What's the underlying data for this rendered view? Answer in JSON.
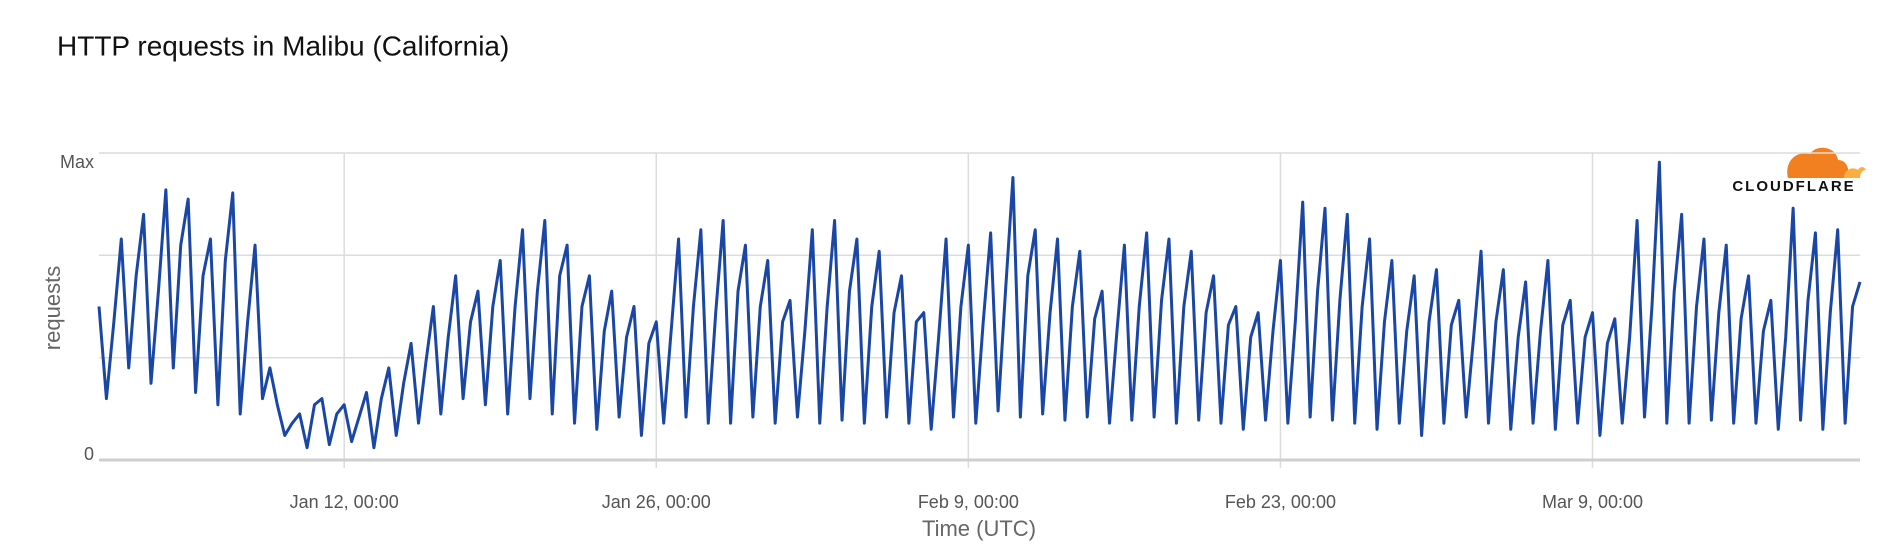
{
  "chart_data": {
    "type": "line",
    "title": "HTTP requests in Malibu (California)",
    "x_label": "Time (UTC)",
    "y_label": "requests",
    "logo": "CLOUDFLARE",
    "color": "#1a47a6",
    "grid": true,
    "ylim": [
      0,
      1
    ],
    "yticks": [
      0,
      {
        "value": 0.333,
        "label": null
      },
      {
        "value": 0.667,
        "label": null
      },
      {
        "value": 1,
        "label": "Max"
      }
    ],
    "xticks": [
      "Jan 12, 00:00",
      "Jan 26, 00:00",
      "Feb 9, 00:00",
      "Feb 23, 00:00",
      "Mar 9, 00:00"
    ],
    "x": [
      "Jan 1, 00:00",
      "Jan 1, 08:00",
      "Jan 1, 16:00",
      "Jan 2, 00:00",
      "Jan 2, 08:00",
      "Jan 2, 16:00",
      "Jan 3, 00:00",
      "Jan 3, 08:00",
      "Jan 3, 16:00",
      "Jan 4, 00:00",
      "Jan 4, 08:00",
      "Jan 4, 16:00",
      "Jan 5, 00:00",
      "Jan 5, 08:00",
      "Jan 5, 16:00",
      "Jan 6, 00:00",
      "Jan 6, 08:00",
      "Jan 6, 16:00",
      "Jan 7, 00:00",
      "Jan 7, 08:00",
      "Jan 7, 16:00",
      "Jan 8, 00:00",
      "Jan 8, 08:00",
      "Jan 8, 16:00",
      "Jan 9, 00:00",
      "Jan 9, 08:00",
      "Jan 9, 16:00",
      "Jan 10, 00:00",
      "Jan 10, 08:00",
      "Jan 10, 16:00",
      "Jan 11, 00:00",
      "Jan 11, 08:00",
      "Jan 11, 16:00",
      "Jan 12, 00:00",
      "Jan 12, 08:00",
      "Jan 12, 16:00",
      "Jan 13, 00:00",
      "Jan 13, 08:00",
      "Jan 13, 16:00",
      "Jan 14, 00:00",
      "Jan 14, 08:00",
      "Jan 14, 16:00",
      "Jan 15, 00:00",
      "Jan 15, 08:00",
      "Jan 15, 16:00",
      "Jan 16, 00:00",
      "Jan 16, 08:00",
      "Jan 16, 16:00",
      "Jan 17, 00:00",
      "Jan 17, 08:00",
      "Jan 17, 16:00",
      "Jan 18, 00:00",
      "Jan 18, 08:00",
      "Jan 18, 16:00",
      "Jan 19, 00:00",
      "Jan 19, 08:00",
      "Jan 19, 16:00",
      "Jan 20, 00:00",
      "Jan 20, 08:00",
      "Jan 20, 16:00",
      "Jan 21, 00:00",
      "Jan 21, 08:00",
      "Jan 21, 16:00",
      "Jan 22, 00:00",
      "Jan 22, 08:00",
      "Jan 22, 16:00",
      "Jan 23, 00:00",
      "Jan 23, 08:00",
      "Jan 23, 16:00",
      "Jan 24, 00:00",
      "Jan 24, 08:00",
      "Jan 24, 16:00",
      "Jan 25, 00:00",
      "Jan 25, 08:00",
      "Jan 25, 16:00",
      "Jan 26, 00:00",
      "Jan 26, 08:00",
      "Jan 26, 16:00",
      "Jan 27, 00:00",
      "Jan 27, 08:00",
      "Jan 27, 16:00",
      "Jan 28, 00:00",
      "Jan 28, 08:00",
      "Jan 28, 16:00",
      "Jan 29, 00:00",
      "Jan 29, 08:00",
      "Jan 29, 16:00",
      "Jan 30, 00:00",
      "Jan 30, 08:00",
      "Jan 30, 16:00",
      "Jan 31, 00:00",
      "Jan 31, 08:00",
      "Jan 31, 16:00",
      "Feb 1, 00:00",
      "Feb 1, 08:00",
      "Feb 1, 16:00",
      "Feb 2, 00:00",
      "Feb 2, 08:00",
      "Feb 2, 16:00",
      "Feb 3, 00:00",
      "Feb 3, 08:00",
      "Feb 3, 16:00",
      "Feb 4, 00:00",
      "Feb 4, 08:00",
      "Feb 4, 16:00",
      "Feb 5, 00:00",
      "Feb 5, 08:00",
      "Feb 5, 16:00",
      "Feb 6, 00:00",
      "Feb 6, 08:00",
      "Feb 6, 16:00",
      "Feb 7, 00:00",
      "Feb 7, 08:00",
      "Feb 7, 16:00",
      "Feb 8, 00:00",
      "Feb 8, 08:00",
      "Feb 8, 16:00",
      "Feb 9, 00:00",
      "Feb 9, 08:00",
      "Feb 9, 16:00",
      "Feb 10, 00:00",
      "Feb 10, 08:00",
      "Feb 10, 16:00",
      "Feb 11, 00:00",
      "Feb 11, 08:00",
      "Feb 11, 16:00",
      "Feb 12, 00:00",
      "Feb 12, 08:00",
      "Feb 12, 16:00",
      "Feb 13, 00:00",
      "Feb 13, 08:00",
      "Feb 13, 16:00",
      "Feb 14, 00:00",
      "Feb 14, 08:00",
      "Feb 14, 16:00",
      "Feb 15, 00:00",
      "Feb 15, 08:00",
      "Feb 15, 16:00",
      "Feb 16, 00:00",
      "Feb 16, 08:00",
      "Feb 16, 16:00",
      "Feb 17, 00:00",
      "Feb 17, 08:00",
      "Feb 17, 16:00",
      "Feb 18, 00:00",
      "Feb 18, 08:00",
      "Feb 18, 16:00",
      "Feb 19, 00:00",
      "Feb 19, 08:00",
      "Feb 19, 16:00",
      "Feb 20, 00:00",
      "Feb 20, 08:00",
      "Feb 20, 16:00",
      "Feb 21, 00:00",
      "Feb 21, 08:00",
      "Feb 21, 16:00",
      "Feb 22, 00:00",
      "Feb 22, 08:00",
      "Feb 22, 16:00",
      "Feb 23, 00:00",
      "Feb 23, 08:00",
      "Feb 23, 16:00",
      "Feb 24, 00:00",
      "Feb 24, 08:00",
      "Feb 24, 16:00",
      "Feb 25, 00:00",
      "Feb 25, 08:00",
      "Feb 25, 16:00",
      "Feb 26, 00:00",
      "Feb 26, 08:00",
      "Feb 26, 16:00",
      "Feb 27, 00:00",
      "Feb 27, 08:00",
      "Feb 27, 16:00",
      "Feb 28, 00:00",
      "Feb 28, 08:00",
      "Feb 28, 16:00",
      "Mar 1, 00:00",
      "Mar 1, 08:00",
      "Mar 1, 16:00",
      "Mar 2, 00:00",
      "Mar 2, 08:00",
      "Mar 2, 16:00",
      "Mar 3, 00:00",
      "Mar 3, 08:00",
      "Mar 3, 16:00",
      "Mar 4, 00:00",
      "Mar 4, 08:00",
      "Mar 4, 16:00",
      "Mar 5, 00:00",
      "Mar 5, 08:00",
      "Mar 5, 16:00",
      "Mar 6, 00:00",
      "Mar 6, 08:00",
      "Mar 6, 16:00",
      "Mar 7, 00:00",
      "Mar 7, 08:00",
      "Mar 7, 16:00",
      "Mar 8, 00:00",
      "Mar 8, 08:00",
      "Mar 8, 16:00",
      "Mar 9, 00:00",
      "Mar 9, 08:00",
      "Mar 9, 16:00",
      "Mar 10, 00:00",
      "Mar 10, 08:00",
      "Mar 10, 16:00",
      "Mar 11, 00:00",
      "Mar 11, 08:00",
      "Mar 11, 16:00",
      "Mar 12, 00:00",
      "Mar 12, 08:00",
      "Mar 12, 16:00",
      "Mar 13, 00:00",
      "Mar 13, 08:00",
      "Mar 13, 16:00",
      "Mar 14, 00:00",
      "Mar 14, 08:00",
      "Mar 14, 16:00",
      "Mar 15, 00:00",
      "Mar 15, 08:00",
      "Mar 15, 16:00",
      "Mar 16, 00:00",
      "Mar 16, 08:00",
      "Mar 16, 16:00",
      "Mar 17, 00:00",
      "Mar 17, 08:00",
      "Mar 17, 16:00",
      "Mar 18, 00:00",
      "Mar 18, 08:00",
      "Mar 18, 16:00",
      "Mar 19, 00:00",
      "Mar 19, 08:00",
      "Mar 19, 16:00",
      "Mar 20, 00:00",
      "Mar 20, 08:00",
      "Mar 20, 16:00",
      "Mar 21, 00:00"
    ],
    "values": [
      0.5,
      0.2,
      0.45,
      0.72,
      0.3,
      0.6,
      0.8,
      0.25,
      0.55,
      0.88,
      0.3,
      0.7,
      0.85,
      0.22,
      0.6,
      0.72,
      0.18,
      0.65,
      0.87,
      0.15,
      0.45,
      0.7,
      0.2,
      0.3,
      0.18,
      0.08,
      0.12,
      0.15,
      0.04,
      0.18,
      0.2,
      0.05,
      0.15,
      0.18,
      0.06,
      0.14,
      0.22,
      0.04,
      0.2,
      0.3,
      0.08,
      0.25,
      0.38,
      0.12,
      0.32,
      0.5,
      0.15,
      0.4,
      0.6,
      0.2,
      0.45,
      0.55,
      0.18,
      0.5,
      0.65,
      0.15,
      0.5,
      0.75,
      0.2,
      0.55,
      0.78,
      0.15,
      0.6,
      0.7,
      0.12,
      0.5,
      0.6,
      0.1,
      0.42,
      0.55,
      0.14,
      0.4,
      0.5,
      0.08,
      0.38,
      0.45,
      0.12,
      0.42,
      0.72,
      0.14,
      0.5,
      0.75,
      0.12,
      0.48,
      0.78,
      0.12,
      0.55,
      0.7,
      0.14,
      0.5,
      0.65,
      0.12,
      0.45,
      0.52,
      0.14,
      0.42,
      0.75,
      0.12,
      0.5,
      0.78,
      0.13,
      0.55,
      0.72,
      0.12,
      0.5,
      0.68,
      0.14,
      0.48,
      0.6,
      0.12,
      0.45,
      0.48,
      0.1,
      0.4,
      0.72,
      0.14,
      0.5,
      0.7,
      0.12,
      0.45,
      0.74,
      0.16,
      0.55,
      0.92,
      0.14,
      0.6,
      0.75,
      0.15,
      0.48,
      0.72,
      0.13,
      0.5,
      0.68,
      0.14,
      0.46,
      0.55,
      0.12,
      0.42,
      0.7,
      0.13,
      0.5,
      0.74,
      0.14,
      0.52,
      0.72,
      0.12,
      0.5,
      0.68,
      0.13,
      0.48,
      0.6,
      0.12,
      0.44,
      0.5,
      0.1,
      0.4,
      0.48,
      0.13,
      0.42,
      0.65,
      0.12,
      0.45,
      0.84,
      0.14,
      0.55,
      0.82,
      0.13,
      0.52,
      0.8,
      0.12,
      0.5,
      0.72,
      0.1,
      0.45,
      0.65,
      0.12,
      0.42,
      0.6,
      0.08,
      0.45,
      0.62,
      0.12,
      0.44,
      0.52,
      0.14,
      0.4,
      0.68,
      0.12,
      0.45,
      0.62,
      0.1,
      0.4,
      0.58,
      0.12,
      0.42,
      0.65,
      0.1,
      0.44,
      0.52,
      0.12,
      0.4,
      0.48,
      0.08,
      0.38,
      0.46,
      0.12,
      0.4,
      0.78,
      0.14,
      0.5,
      0.97,
      0.12,
      0.55,
      0.8,
      0.12,
      0.5,
      0.72,
      0.13,
      0.48,
      0.7,
      0.12,
      0.46,
      0.6,
      0.12,
      0.42,
      0.52,
      0.1,
      0.4,
      0.82,
      0.13,
      0.52,
      0.74,
      0.1,
      0.48,
      0.75,
      0.12,
      0.5,
      0.58
    ]
  }
}
